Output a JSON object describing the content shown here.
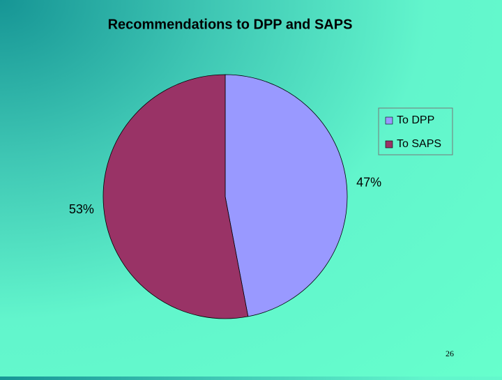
{
  "chart_data": {
    "type": "pie",
    "title": "Recommendations to DPP and SAPS",
    "categories": [
      "To DPP",
      "To SAPS"
    ],
    "values": [
      47,
      53
    ],
    "value_labels": [
      "47%",
      "53%"
    ],
    "colors": [
      "#9999ff",
      "#993366"
    ],
    "legend": "right"
  },
  "slide_number": 26
}
